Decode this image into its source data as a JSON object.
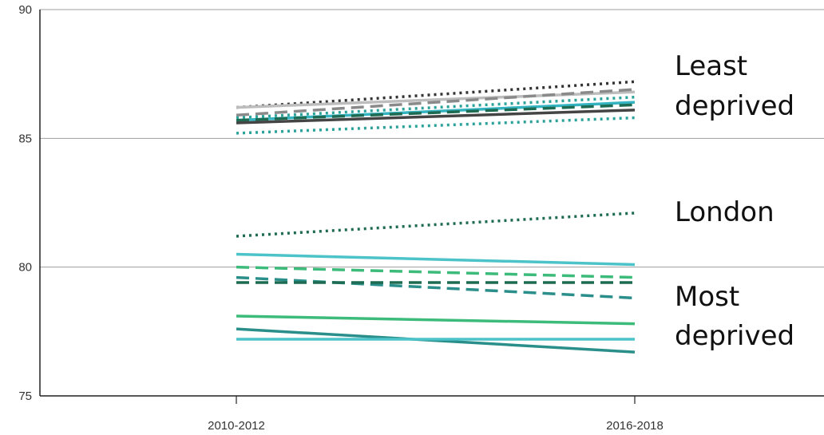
{
  "chart_data": {
    "type": "line",
    "title": "",
    "xlabel": "",
    "ylabel": "",
    "x": [
      "2010-2012",
      "2016-2018"
    ],
    "ylim": [
      75,
      90
    ],
    "yticks": [
      "75",
      "80",
      "85",
      "90"
    ],
    "grid": true,
    "legend": "none",
    "annotations": [
      "Least deprived",
      "London",
      "Most deprived"
    ],
    "series": [
      {
        "values": [
          86.2,
          87.2
        ],
        "color": "#333333",
        "dash": "dotted"
      },
      {
        "values": [
          86.2,
          86.8
        ],
        "color": "#bdbdbd",
        "dash": "solid"
      },
      {
        "values": [
          85.9,
          86.9
        ],
        "color": "#8a8a8a",
        "dash": "dashed"
      },
      {
        "values": [
          85.8,
          86.6
        ],
        "color": "#2aa29a",
        "dash": "dotted"
      },
      {
        "values": [
          85.7,
          86.4
        ],
        "color": "#34b3c0",
        "dash": "solid"
      },
      {
        "values": [
          85.7,
          86.3
        ],
        "color": "#1d6b52",
        "dash": "dashed"
      },
      {
        "values": [
          85.6,
          86.1
        ],
        "color": "#444444",
        "dash": "solid"
      },
      {
        "values": [
          85.2,
          85.8
        ],
        "color": "#2aa29a",
        "dash": "dotted"
      },
      {
        "values": [
          81.2,
          82.1
        ],
        "color": "#1d6b52",
        "dash": "dotted"
      },
      {
        "values": [
          80.5,
          80.1
        ],
        "color": "#4cc3c9",
        "dash": "solid"
      },
      {
        "values": [
          80.0,
          79.6
        ],
        "color": "#3dbb7a",
        "dash": "dashed"
      },
      {
        "values": [
          79.6,
          78.8
        ],
        "color": "#2a8f8a",
        "dash": "dashed"
      },
      {
        "values": [
          79.4,
          79.4
        ],
        "color": "#1d6b52",
        "dash": "dashed"
      },
      {
        "values": [
          78.1,
          77.8
        ],
        "color": "#3dbb7a",
        "dash": "solid"
      },
      {
        "values": [
          77.6,
          76.7
        ],
        "color": "#2a8f8a",
        "dash": "solid"
      },
      {
        "values": [
          77.2,
          77.2
        ],
        "color": "#4cc3c9",
        "dash": "solid"
      }
    ]
  }
}
